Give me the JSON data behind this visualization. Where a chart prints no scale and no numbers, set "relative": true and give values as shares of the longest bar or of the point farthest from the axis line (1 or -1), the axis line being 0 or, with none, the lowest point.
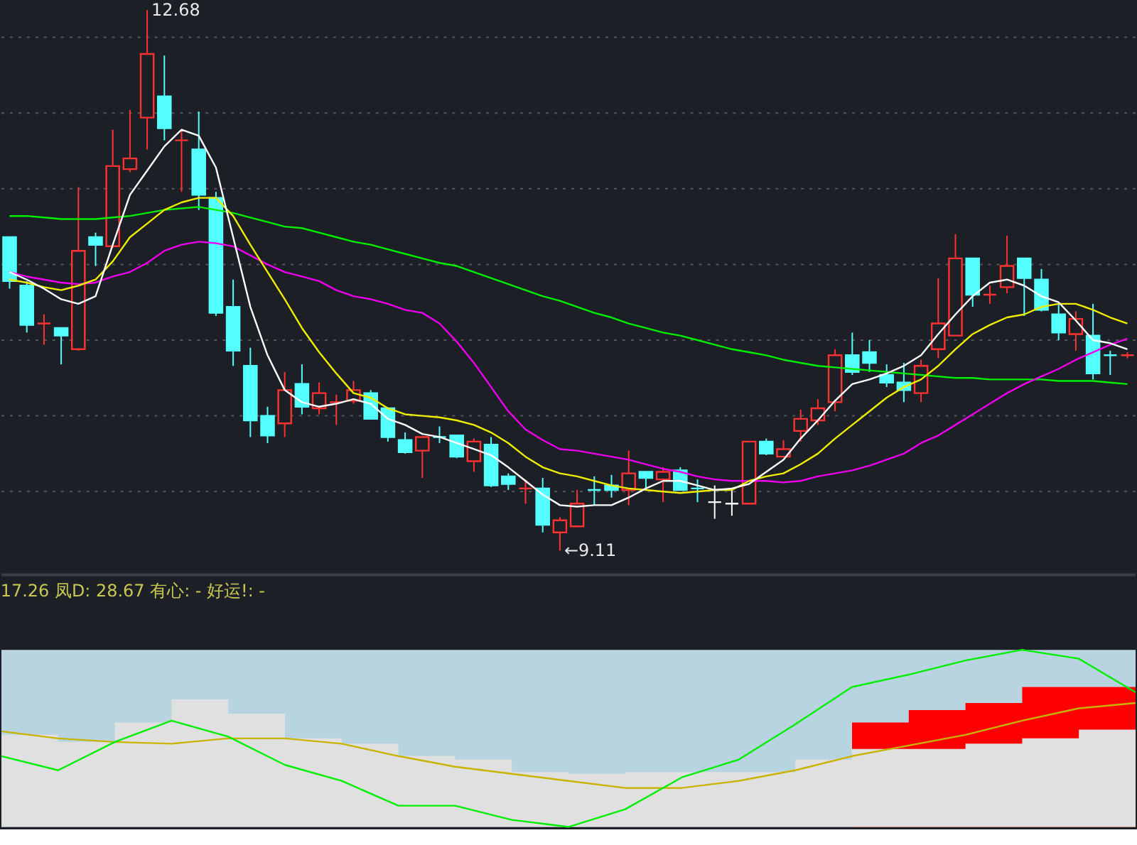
{
  "chart_data": [
    {
      "type": "candlestick",
      "categories": [
        null,
        null,
        null,
        null,
        null,
        null,
        null,
        null,
        null,
        null,
        null,
        null,
        null,
        null,
        null,
        null,
        null,
        null,
        null,
        null,
        null,
        null,
        null,
        null,
        null,
        null,
        null,
        null,
        null,
        null,
        null,
        null,
        null,
        null,
        null,
        null,
        null,
        null,
        null,
        null,
        null,
        null,
        null,
        null,
        null,
        null,
        null,
        null,
        null,
        null,
        null,
        null,
        null,
        null,
        null,
        null,
        null,
        null,
        null,
        null,
        null,
        null,
        null,
        null,
        null,
        null
      ],
      "ohlc": [
        [
          11.18,
          11.18,
          10.84,
          10.89
        ],
        [
          10.86,
          10.89,
          10.55,
          10.6
        ],
        [
          10.61,
          10.67,
          10.47,
          10.61
        ],
        [
          10.58,
          10.58,
          10.34,
          10.53
        ],
        [
          10.44,
          11.51,
          10.43,
          11.09
        ],
        [
          11.18,
          11.21,
          10.99,
          11.13
        ],
        [
          11.12,
          11.89,
          11.11,
          11.65
        ],
        [
          11.63,
          12.02,
          11.61,
          11.7
        ],
        [
          11.97,
          12.68,
          11.76,
          12.39
        ],
        [
          12.11,
          12.38,
          11.82,
          11.9
        ],
        [
          11.82,
          11.89,
          11.48,
          11.82
        ],
        [
          11.76,
          12.01,
          11.36,
          11.46
        ],
        [
          11.44,
          11.48,
          10.66,
          10.68
        ],
        [
          10.72,
          10.9,
          10.33,
          10.43
        ],
        [
          10.33,
          10.45,
          9.86,
          9.97
        ],
        [
          10.0,
          10.06,
          9.82,
          9.87
        ],
        [
          9.95,
          10.29,
          9.86,
          10.17
        ],
        [
          10.21,
          10.34,
          10.01,
          10.06
        ],
        [
          10.05,
          10.22,
          10.01,
          10.15
        ],
        [
          10.09,
          10.14,
          9.94,
          10.09
        ],
        [
          10.1,
          10.23,
          10.08,
          10.17
        ],
        [
          10.15,
          10.17,
          9.98,
          9.98
        ],
        [
          10.05,
          10.05,
          9.83,
          9.86
        ],
        [
          9.84,
          9.89,
          9.75,
          9.76
        ],
        [
          9.77,
          9.86,
          9.59,
          9.86
        ],
        [
          9.86,
          9.93,
          9.82,
          9.86
        ],
        [
          9.87,
          9.87,
          9.72,
          9.73
        ],
        [
          9.7,
          9.85,
          9.63,
          9.83
        ],
        [
          9.81,
          9.86,
          9.53,
          9.54
        ],
        [
          9.6,
          9.62,
          9.51,
          9.55
        ],
        [
          9.52,
          9.58,
          9.42,
          9.52
        ],
        [
          9.52,
          9.59,
          9.23,
          9.28
        ],
        [
          9.23,
          9.33,
          9.11,
          9.31
        ],
        [
          9.27,
          9.51,
          9.27,
          9.42
        ],
        [
          9.51,
          9.6,
          9.41,
          9.51
        ],
        [
          9.54,
          9.61,
          9.46,
          9.51
        ],
        [
          9.51,
          9.77,
          9.41,
          9.62
        ],
        [
          9.63,
          9.63,
          9.51,
          9.59
        ],
        [
          9.58,
          9.66,
          9.43,
          9.63
        ],
        [
          9.64,
          9.66,
          9.51,
          9.51
        ],
        [
          9.52,
          9.58,
          9.43,
          9.52
        ],
        [
          9.43,
          9.54,
          9.32,
          9.43
        ],
        [
          9.42,
          9.51,
          9.34,
          9.42
        ],
        [
          9.42,
          9.83,
          9.42,
          9.83
        ],
        [
          9.83,
          9.85,
          9.74,
          9.75
        ],
        [
          9.73,
          9.84,
          9.73,
          9.78
        ],
        [
          9.9,
          10.04,
          9.83,
          9.98
        ],
        [
          9.97,
          10.11,
          9.94,
          10.05
        ],
        [
          10.09,
          10.44,
          10.03,
          10.4
        ],
        [
          10.4,
          10.55,
          10.27,
          10.29
        ],
        [
          10.42,
          10.5,
          10.29,
          10.35
        ],
        [
          10.27,
          10.34,
          10.19,
          10.22
        ],
        [
          10.22,
          10.35,
          10.09,
          10.17
        ],
        [
          10.15,
          10.37,
          10.09,
          10.33
        ],
        [
          10.44,
          10.91,
          10.38,
          10.61
        ],
        [
          10.53,
          11.2,
          10.53,
          11.04
        ],
        [
          11.04,
          11.04,
          10.72,
          10.8
        ],
        [
          10.8,
          10.86,
          10.74,
          10.8
        ],
        [
          10.85,
          11.19,
          10.81,
          10.99
        ],
        [
          11.04,
          11.04,
          10.66,
          10.91
        ],
        [
          10.9,
          10.97,
          10.69,
          10.7
        ],
        [
          10.67,
          10.74,
          10.5,
          10.55
        ],
        [
          10.54,
          10.69,
          10.43,
          10.64
        ],
        [
          10.53,
          10.74,
          10.24,
          10.28
        ],
        [
          10.4,
          10.43,
          10.27,
          10.4
        ],
        [
          10.4,
          10.42,
          10.38,
          10.4
        ]
      ],
      "colors": [
        "#54ffff",
        "#54ffff",
        "#ff3232",
        "#54ffff",
        "#ff3232",
        "#54ffff",
        "#ff3232",
        "#ff3232",
        "#ff3232",
        "#54ffff",
        "#ff3232",
        "#54ffff",
        "#54ffff",
        "#54ffff",
        "#54ffff",
        "#54ffff",
        "#ff3232",
        "#54ffff",
        "#ff3232",
        "#ff3232",
        "#ff3232",
        "#54ffff",
        "#54ffff",
        "#54ffff",
        "#ff3232",
        "#54ffff",
        "#54ffff",
        "#ff3232",
        "#54ffff",
        "#54ffff",
        "#ff3232",
        "#54ffff",
        "#ff3232",
        "#ff3232",
        "#54ffff",
        "#54ffff",
        "#ff3232",
        "#54ffff",
        "#ff3232",
        "#54ffff",
        "#54ffff",
        "#ffffff",
        "#ffffff",
        "#ff3232",
        "#54ffff",
        "#ff3232",
        "#ff3232",
        "#ff3232",
        "#ff3232",
        "#54ffff",
        "#54ffff",
        "#54ffff",
        "#54ffff",
        "#ff3232",
        "#ff3232",
        "#ff3232",
        "#54ffff",
        "#ff3232",
        "#ff3232",
        "#54ffff",
        "#54ffff",
        "#54ffff",
        "#ff3232",
        "#54ffff",
        "#54ffff",
        "#ff3232"
      ],
      "series": [
        {
          "type": "line",
          "color": "#00ee00",
          "values": [
            11.32,
            11.32,
            11.31,
            11.3,
            11.3,
            11.3,
            11.31,
            11.32,
            11.34,
            11.36,
            11.37,
            11.38,
            11.36,
            11.34,
            11.31,
            11.28,
            11.25,
            11.24,
            11.21,
            11.18,
            11.15,
            11.13,
            11.1,
            11.07,
            11.04,
            11.01,
            10.99,
            10.95,
            10.91,
            10.87,
            10.83,
            10.79,
            10.76,
            10.72,
            10.68,
            10.65,
            10.61,
            10.58,
            10.55,
            10.53,
            10.5,
            10.47,
            10.44,
            10.42,
            10.4,
            10.37,
            10.35,
            10.33,
            10.32,
            10.31,
            10.3,
            10.29,
            10.28,
            10.27,
            10.26,
            10.25,
            10.25,
            10.24,
            10.24,
            10.24,
            10.24,
            10.23,
            10.23,
            10.23,
            10.22,
            10.21
          ]
        },
        {
          "type": "line",
          "color": "#ee00ee",
          "values": [
            10.95,
            10.92,
            10.9,
            10.88,
            10.87,
            10.88,
            10.92,
            10.95,
            11.01,
            11.09,
            11.13,
            11.15,
            11.14,
            11.12,
            11.06,
            11.0,
            10.95,
            10.92,
            10.89,
            10.83,
            10.79,
            10.77,
            10.74,
            10.7,
            10.68,
            10.61,
            10.49,
            10.35,
            10.19,
            10.03,
            9.91,
            9.84,
            9.78,
            9.77,
            9.75,
            9.73,
            9.71,
            9.68,
            9.65,
            9.63,
            9.6,
            9.58,
            9.57,
            9.57,
            9.57,
            9.56,
            9.57,
            9.6,
            9.62,
            9.64,
            9.67,
            9.71,
            9.75,
            9.82,
            9.87,
            9.94,
            10.01,
            10.08,
            10.15,
            10.21,
            10.26,
            10.31,
            10.37,
            10.42,
            10.47,
            10.51
          ]
        },
        {
          "type": "line",
          "color": "#eeee00",
          "values": [
            10.9,
            10.88,
            10.85,
            10.83,
            10.86,
            10.9,
            11.02,
            11.18,
            11.27,
            11.36,
            11.41,
            11.44,
            11.44,
            11.32,
            11.13,
            10.95,
            10.77,
            10.58,
            10.42,
            10.28,
            10.15,
            10.12,
            10.05,
            10.01,
            10.0,
            9.99,
            9.97,
            9.94,
            9.89,
            9.82,
            9.73,
            9.66,
            9.62,
            9.6,
            9.57,
            9.54,
            9.52,
            9.51,
            9.5,
            9.49,
            9.5,
            9.51,
            9.51,
            9.57,
            9.6,
            9.62,
            9.68,
            9.75,
            9.85,
            9.94,
            10.03,
            10.12,
            10.19,
            10.24,
            10.33,
            10.44,
            10.54,
            10.6,
            10.65,
            10.67,
            10.72,
            10.74,
            10.74,
            10.7,
            10.65,
            10.61
          ]
        },
        {
          "type": "line",
          "color": "#ffffff",
          "values": [
            10.95,
            10.9,
            10.84,
            10.77,
            10.74,
            10.79,
            11.13,
            11.46,
            11.62,
            11.78,
            11.89,
            11.85,
            11.64,
            11.18,
            10.72,
            10.4,
            10.17,
            10.09,
            10.06,
            10.08,
            10.11,
            10.08,
            9.98,
            9.94,
            9.88,
            9.86,
            9.82,
            9.78,
            9.74,
            9.66,
            9.57,
            9.48,
            9.41,
            9.4,
            9.41,
            9.41,
            9.46,
            9.52,
            9.57,
            9.57,
            9.54,
            9.51,
            9.52,
            9.55,
            9.63,
            9.71,
            9.85,
            9.97,
            10.1,
            10.21,
            10.24,
            10.28,
            10.33,
            10.4,
            10.54,
            10.67,
            10.79,
            10.88,
            10.9,
            10.86,
            10.79,
            10.75,
            10.63,
            10.5,
            10.48,
            10.44
          ]
        }
      ],
      "ylim": [
        8.95,
        12.74
      ],
      "yticks": [
        {
          "value": 12.5,
          "label": null
        },
        {
          "value": 12.0,
          "label": null
        },
        {
          "value": 11.5,
          "label": null
        },
        {
          "value": 11.0,
          "label": null
        },
        {
          "value": 10.5,
          "label": null
        },
        {
          "value": 10.0,
          "label": null
        },
        {
          "value": 9.5,
          "label": null
        }
      ],
      "grid": "y",
      "annotations": [
        "12.68",
        "←9.11"
      ]
    },
    {
      "type": "line",
      "relative": true,
      "categories": [
        null,
        null,
        null,
        null,
        null,
        null,
        null,
        null,
        null,
        null,
        null,
        null,
        null,
        null,
        null,
        null,
        null,
        null,
        null,
        null,
        null
      ],
      "series": [
        {
          "type": "area",
          "color": "#ff0000",
          "values": [
            null,
            null,
            null,
            null,
            null,
            null,
            null,
            null,
            null,
            null,
            null,
            null,
            null,
            null,
            null,
            0.59,
            0.66,
            0.7,
            0.79,
            0.79,
            0.76
          ]
        },
        {
          "type": "area",
          "color": "#e0e0e0",
          "values": [
            0.52,
            0.48,
            0.59,
            0.72,
            0.64,
            0.5,
            0.47,
            0.4,
            0.38,
            0.31,
            0.3,
            0.31,
            0.31,
            0.31,
            0.38,
            0.44,
            0.44,
            0.47,
            0.5,
            0.55,
            0.58
          ]
        },
        {
          "type": "line",
          "color": "#c8b400",
          "values": [
            0.54,
            0.5,
            0.48,
            0.47,
            0.5,
            0.5,
            0.47,
            0.4,
            0.34,
            0.3,
            0.26,
            0.22,
            0.22,
            0.26,
            0.32,
            0.4,
            0.46,
            0.52,
            0.6,
            0.67,
            0.7
          ]
        },
        {
          "type": "line",
          "color": "#00ee00",
          "values": [
            0.4,
            0.32,
            0.48,
            0.6,
            0.51,
            0.35,
            0.26,
            0.12,
            0.12,
            0.04,
            0,
            0.1,
            0.28,
            0.38,
            0.58,
            0.79,
            0.86,
            0.94,
            1,
            0.95,
            0.76
          ]
        }
      ],
      "annotations": [
        "17.26 凤D: 28.67 有心: - 好运!: -"
      ]
    }
  ]
}
